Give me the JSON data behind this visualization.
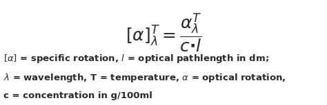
{
  "background_color": "#ffffff",
  "text_color": "#2a2a2a",
  "font_size_formula": 18,
  "font_size_text": 9.5,
  "fig_width": 4.74,
  "fig_height": 1.53,
  "dpi": 100
}
